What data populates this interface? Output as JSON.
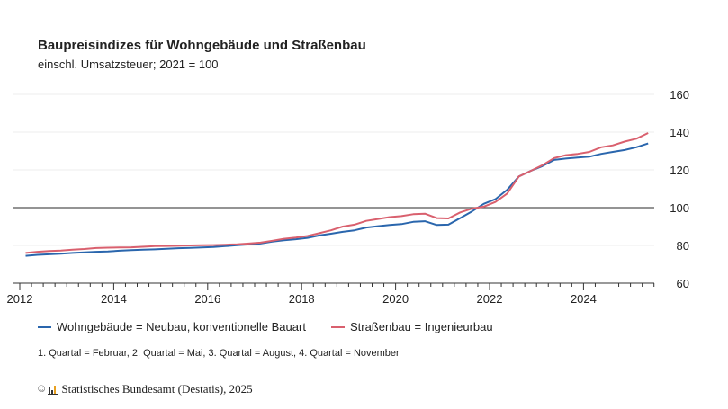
{
  "header": {
    "title": "Baupreisindizes für Wohngebäude und Straßenbau",
    "subtitle": "einschl. Umsatzsteuer; 2021 = 100"
  },
  "chart_data": {
    "type": "line",
    "title": "Baupreisindizes für Wohngebäude und Straßenbau",
    "subtitle": "einschl. Umsatzsteuer; 2021 = 100",
    "xlim": [
      2012,
      2025.5
    ],
    "ylim": [
      60,
      160
    ],
    "yticks": [
      60,
      80,
      100,
      120,
      140,
      160
    ],
    "xticks": [
      2012,
      2014,
      2016,
      2018,
      2020,
      2022,
      2024
    ],
    "reference_line": 100,
    "grid": true,
    "legend_placement": "bottom",
    "x_start": "2012 Q1",
    "x_end": "2025 Q2",
    "frequency": "quarterly",
    "series": [
      {
        "name": "Wohngebäude = Neubau, konventionelle Bauart",
        "color": "#2a66ad",
        "values": [
          74.5,
          75,
          75.3,
          75.6,
          76,
          76.3,
          76.6,
          76.8,
          77.2,
          77.5,
          77.7,
          77.9,
          78.2,
          78.5,
          78.7,
          78.9,
          79.2,
          79.6,
          80.1,
          80.5,
          81,
          82,
          82.7,
          83.3,
          84,
          85.3,
          86.2,
          87.2,
          88,
          89.5,
          90.2,
          90.8,
          91.3,
          92.5,
          92.8,
          90.8,
          91,
          94.5,
          98,
          102,
          104.5,
          109.5,
          116.5,
          119.5,
          122,
          125.3,
          126,
          126.5,
          127,
          128.5,
          129.5,
          130.5,
          132,
          134
        ]
      },
      {
        "name": "Straßenbau = Ingenieurbau",
        "color": "#d9606e",
        "values": [
          76,
          76.6,
          77,
          77.3,
          77.7,
          78.1,
          78.6,
          78.8,
          78.9,
          79,
          79.3,
          79.6,
          79.7,
          79.8,
          80,
          80.1,
          80.2,
          80.4,
          80.6,
          81,
          81.5,
          82.5,
          83.5,
          84.2,
          85,
          86.5,
          88,
          90,
          91,
          93,
          94,
          95,
          95.5,
          96.5,
          96.8,
          94.5,
          94.3,
          97.5,
          99.5,
          100.5,
          103,
          107.5,
          116.5,
          119.5,
          122.5,
          126.3,
          127.8,
          128.5,
          129.5,
          132,
          133,
          135,
          136.5,
          139.5
        ]
      }
    ]
  },
  "legend": [
    {
      "label": "Wohngebäude = Neubau, konventionelle Bauart",
      "color": "#2a66ad"
    },
    {
      "label": "Straßenbau = Ingenieurbau",
      "color": "#d9606e"
    }
  ],
  "footnote": "1. Quartal = Februar, 2. Quartal = Mai, 3. Quartal = August, 4. Quartal = November",
  "source": {
    "copyright": "©",
    "text": "Statistisches Bundesamt (Destatis), 2025"
  }
}
